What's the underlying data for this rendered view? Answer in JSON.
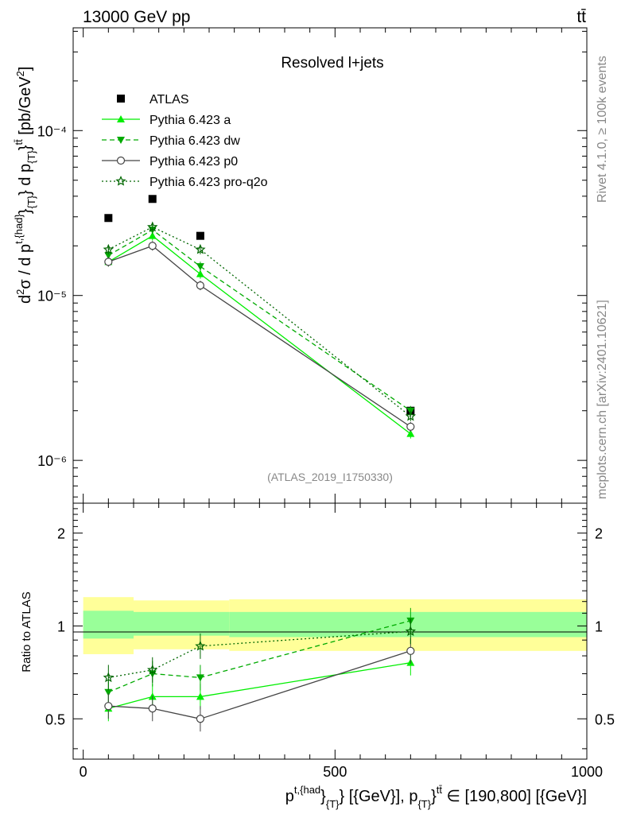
{
  "header": {
    "left": "13000 GeV pp",
    "right": "tt̄"
  },
  "side": {
    "rivet": "Rivet 4.1.0, ≥ 100k events",
    "mcplots": "mcplots.cern.ch [arXiv:2401.10621]"
  },
  "chart_data": [
    {
      "type": "line",
      "panel": "main",
      "title": "Resolved l+jets",
      "watermark": "(ATLAS_2019_I1750330)",
      "ylabel": "d²σ / d p^{t,{had}}_{T} d p_{T}^{tt̄} [pb/GeV²]",
      "yscale": "log",
      "ylim": [
        5.5e-07,
        0.00042
      ],
      "xlim": [
        -20,
        1000
      ],
      "ytick_labels": [
        "10⁻⁶",
        "10⁻⁵",
        "10⁻⁴"
      ],
      "ytick_values": [
        1e-06,
        1e-05,
        0.0001
      ],
      "x": [
        50,
        137.5,
        232.5,
        650
      ],
      "series": [
        {
          "name": "ATLAS",
          "values": [
            2.95e-05,
            3.85e-05,
            2.3e-05,
            2e-06
          ],
          "color": "#000000",
          "marker": "square",
          "dash": "none"
        },
        {
          "name": "Pythia 6.423 a",
          "values": [
            1.6e-05,
            2.3e-05,
            1.35e-05,
            1.45e-06
          ],
          "color": "#00ee00",
          "marker": "triangle-up",
          "dash": "solid"
        },
        {
          "name": "Pythia 6.423 dw",
          "values": [
            1.75e-05,
            2.5e-05,
            1.5e-05,
            2e-06
          ],
          "color": "#00aa00",
          "marker": "triangle-down",
          "dash": "dashed"
        },
        {
          "name": "Pythia 6.423 p0",
          "values": [
            1.6e-05,
            2e-05,
            1.15e-05,
            1.6e-06
          ],
          "color": "#444444",
          "marker": "circle-open",
          "dash": "solid"
        },
        {
          "name": "Pythia 6.423 pro-q2o",
          "values": [
            1.9e-05,
            2.6e-05,
            1.9e-05,
            1.85e-06
          ],
          "color": "#006600",
          "marker": "star-open",
          "dash": "dotted"
        }
      ]
    },
    {
      "type": "line",
      "panel": "ratio",
      "ylabel": "Ratio to ATLAS",
      "xlabel": "p^{t,{had}}_{T} [{GeV}], p_{T}^{tt̄} ∈ [190,800] [{GeV}]",
      "ylim": [
        0.37,
        2.5
      ],
      "xlim": [
        -20,
        1000
      ],
      "ytick_labels": [
        "0.5",
        "1",
        "2"
      ],
      "ytick_values": [
        0.5,
        1,
        2
      ],
      "xtick_labels": [
        "0",
        "500",
        "1000"
      ],
      "xtick_values": [
        0,
        500,
        1000
      ],
      "x": [
        50,
        137.5,
        232.5,
        650
      ],
      "bands": {
        "bins": [
          [
            0,
            100
          ],
          [
            100,
            290
          ],
          [
            290,
            1000
          ]
        ],
        "yellow": [
          [
            0.81,
            1.24
          ],
          [
            0.84,
            1.21
          ],
          [
            0.83,
            1.22
          ]
        ],
        "green": [
          [
            0.91,
            1.12
          ],
          [
            0.93,
            1.11
          ],
          [
            0.92,
            1.11
          ]
        ]
      },
      "series": [
        {
          "name": "Pythia 6.423 a",
          "values": [
            0.54,
            0.59,
            0.59,
            0.76
          ],
          "color": "#00ee00",
          "marker": "triangle-up",
          "dash": "solid"
        },
        {
          "name": "Pythia 6.423 dw",
          "values": [
            0.61,
            0.7,
            0.68,
            1.04
          ],
          "color": "#00aa00",
          "marker": "triangle-down",
          "dash": "dashed"
        },
        {
          "name": "Pythia 6.423 p0",
          "values": [
            0.55,
            0.54,
            0.5,
            0.83
          ],
          "color": "#444444",
          "marker": "circle-open",
          "dash": "solid"
        },
        {
          "name": "Pythia 6.423 pro-q2o",
          "values": [
            0.68,
            0.72,
            0.86,
            0.96
          ],
          "color": "#006600",
          "marker": "star-open",
          "dash": "dotted"
        }
      ]
    }
  ]
}
